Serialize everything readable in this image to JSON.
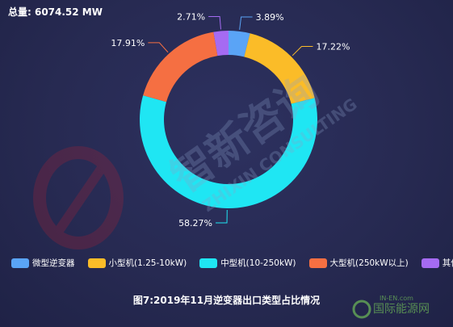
{
  "total_label": "总量: 6074.52 MW",
  "caption": "图7:2019年11月逆变器出口类型占比情况",
  "watermark": {
    "brand_cn": "智新咨询",
    "brand_en": "ZHIXIN CONSULTING",
    "corner": "国际能源网",
    "corner_sub": "IN-EN.com"
  },
  "colors": {
    "micro": "#5aa4f6",
    "small": "#fbbc28",
    "medium": "#1fe6f3",
    "large": "#f56f42",
    "other": "#a56bf2"
  },
  "chart_data": {
    "type": "pie",
    "title": "",
    "total_mw": 6074.52,
    "categories": [
      "微型逆变器",
      "小型机(1.25-10kW)",
      "中型机(10-250kW)",
      "大型机(250kW以上)",
      "其他"
    ],
    "values": [
      3.89,
      17.22,
      58.27,
      17.91,
      2.71
    ],
    "labels": [
      "3.89%",
      "17.22%",
      "58.27%",
      "17.91%",
      "2.71%"
    ],
    "colors": [
      "#5aa4f6",
      "#fbbc28",
      "#1fe6f3",
      "#f56f42",
      "#a56bf2"
    ],
    "legend_position": "bottom",
    "donut": true
  }
}
